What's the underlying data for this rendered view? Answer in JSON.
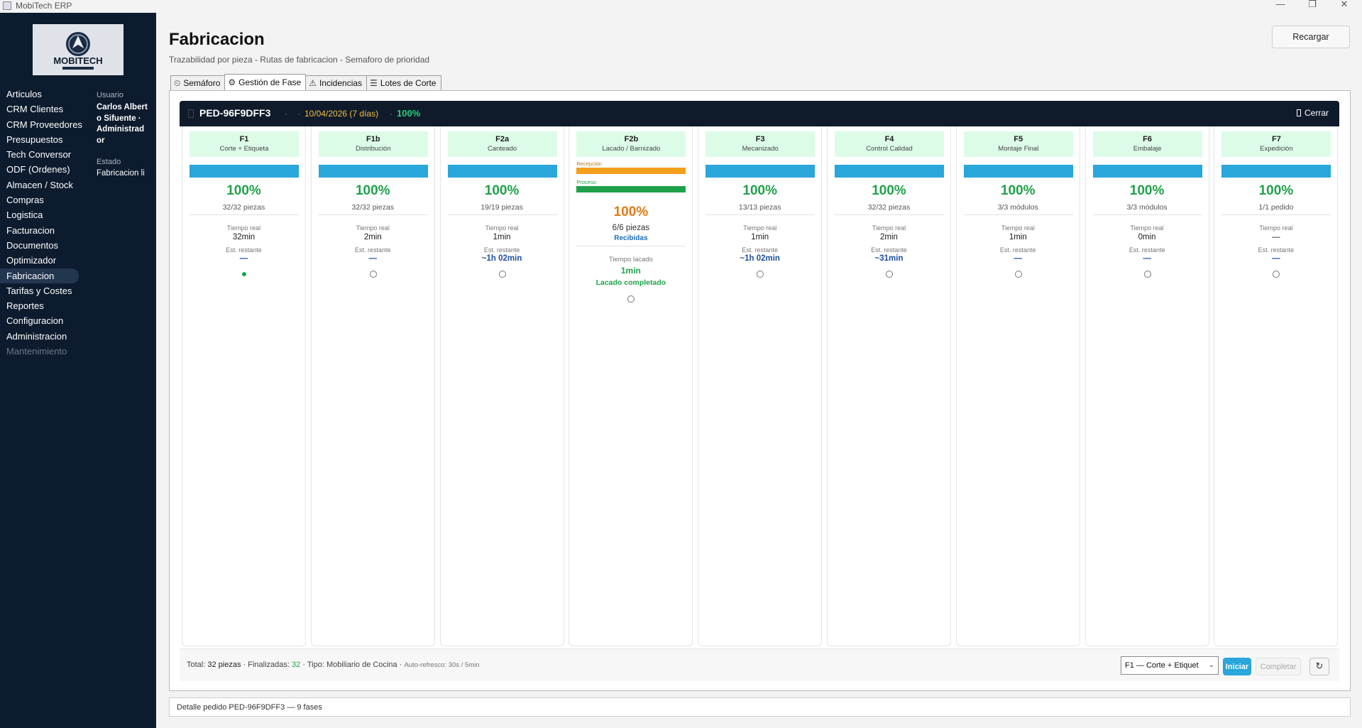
{
  "window": {
    "title": "MobiTech ERP",
    "minimize": "—",
    "maximize": "❐",
    "close": "✕"
  },
  "sidebar": {
    "items": [
      {
        "label": "Articulos"
      },
      {
        "label": "CRM Clientes"
      },
      {
        "label": "CRM Proveedores"
      },
      {
        "label": "Presupuestos"
      },
      {
        "label": "Tech Conversor"
      },
      {
        "label": "ODF (Ordenes)"
      },
      {
        "label": "Almacen / Stock"
      },
      {
        "label": "Compras"
      },
      {
        "label": "Logistica"
      },
      {
        "label": "Facturacion"
      },
      {
        "label": "Documentos"
      },
      {
        "label": "Optimizador"
      },
      {
        "label": "Fabricacion",
        "active": true
      },
      {
        "label": "Tarifas y Costes"
      },
      {
        "label": "Reportes"
      },
      {
        "label": "Configuracion"
      },
      {
        "label": "Administracion"
      },
      {
        "label": "Mantenimiento",
        "disabled": true
      }
    ],
    "user_label": "Usuario",
    "user_name": "Carlos Alberto Sifuente · Administrador",
    "estado_label": "Estado",
    "estado_value": "Fabricacion li"
  },
  "header": {
    "title": "Fabricacion",
    "subtitle": "Trazabilidad por pieza - Rutas de fabricacion - Semaforo de prioridad",
    "reload_label": "Recargar"
  },
  "tabs": [
    {
      "label": "Semáforo",
      "icon": "⏲"
    },
    {
      "label": "Gestión de Fase",
      "icon": "⚙"
    },
    {
      "label": "Incidencias",
      "icon": "⚠"
    },
    {
      "label": "Lotes de Corte",
      "icon": "☰"
    }
  ],
  "order": {
    "id": "PED-96F9DFF3",
    "sep": "·",
    "date": "10/04/2026 (7 días)",
    "progress": "100%",
    "close_label": "Cerrar"
  },
  "phases": [
    {
      "code": "F1",
      "name": "Corte + Etiqueta",
      "pct": "100%",
      "pieces": "32/32 piezas",
      "time_label": "Tiempo real",
      "time": "32min",
      "est_label": "Est. restante",
      "est": "—",
      "selected": true
    },
    {
      "code": "F1b",
      "name": "Distribución",
      "pct": "100%",
      "pieces": "32/32 piezas",
      "time_label": "Tiempo real",
      "time": "2min",
      "est_label": "Est. restante",
      "est": "—"
    },
    {
      "code": "F2a",
      "name": "Canteado",
      "pct": "100%",
      "pieces": "19/19 piezas",
      "time_label": "Tiempo real",
      "time": "1min",
      "est_label": "Est. restante",
      "est": "~1h 02min"
    },
    {
      "code": "F2b",
      "name": "Lacado / Barnizado",
      "special": true,
      "reception_label": "Recepción",
      "process_label": "Proceso",
      "pct": "100%",
      "pieces": "6/6 piezas",
      "received": "Recibidas",
      "time_label": "Tiempo lacado",
      "time": "1min",
      "done": "Lacado completado"
    },
    {
      "code": "F3",
      "name": "Mecanizado",
      "pct": "100%",
      "pieces": "13/13 piezas",
      "time_label": "Tiempo real",
      "time": "1min",
      "est_label": "Est. restante",
      "est": "~1h 02min"
    },
    {
      "code": "F4",
      "name": "Control Calidad",
      "pct": "100%",
      "pieces": "32/32 piezas",
      "time_label": "Tiempo real",
      "time": "2min",
      "est_label": "Est. restante",
      "est": "~31min"
    },
    {
      "code": "F5",
      "name": "Montaje Final",
      "pct": "100%",
      "pieces": "3/3 módulos",
      "time_label": "Tiempo real",
      "time": "1min",
      "est_label": "Est. restante",
      "est": "—"
    },
    {
      "code": "F6",
      "name": "Embalaje",
      "pct": "100%",
      "pieces": "3/3 módulos",
      "time_label": "Tiempo real",
      "time": "0min",
      "est_label": "Est. restante",
      "est": "—"
    },
    {
      "code": "F7",
      "name": "Expedición",
      "pct": "100%",
      "pieces": "1/1 pedido",
      "time_label": "Tiempo real",
      "time": "—",
      "est_label": "Est. restante",
      "est": "—"
    }
  ],
  "footer": {
    "total_label": "Total:",
    "total_value": "32 piezas",
    "finished_label": "Finalizadas:",
    "finished_value": "32",
    "type_label": "Tipo:",
    "type_value": "Mobiliario de Cocina",
    "refresh_info": "Auto-refresco: 30s / 5min",
    "sep": "·",
    "phase_select": "F1 — Corte + Etiquet",
    "start_label": "Iniciar",
    "complete_label": "Completar",
    "refresh_icon": "↻"
  },
  "statusbar": {
    "text": "Detalle pedido PED-96F9DFF3 — 9 fases"
  }
}
